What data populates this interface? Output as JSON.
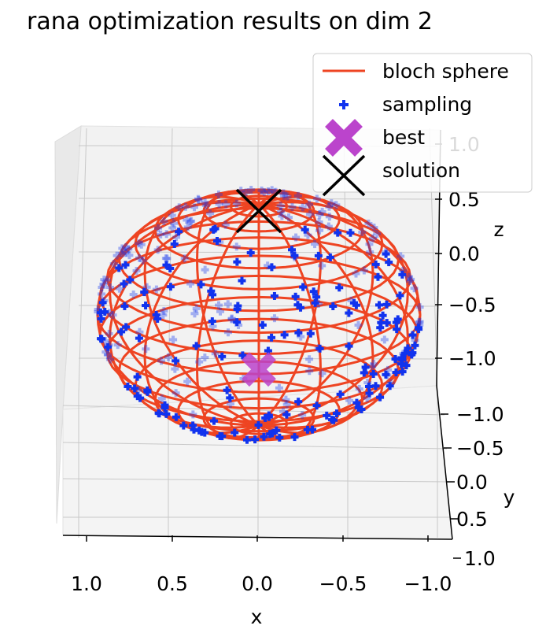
{
  "chart_data": {
    "type": "scatter",
    "projection": "3d",
    "title": "rana optimization results on dim 2",
    "xlabel": "x",
    "ylabel": "y",
    "zlabel": "z",
    "xlim": [
      -1.0,
      1.0
    ],
    "ylim": [
      -1.0,
      1.0
    ],
    "zlim": [
      -1.0,
      1.0
    ],
    "x_ticks": [
      "1.0",
      "0.5",
      "0.0",
      "−0.5",
      "−1.0"
    ],
    "y_ticks": [
      "−1.0",
      "−0.5",
      "0.0",
      "0.5",
      "1.0"
    ],
    "z_ticks": [
      "−1.0",
      "−0.5",
      "0.0",
      "0.5",
      "1.0"
    ],
    "grid": true,
    "legend_position": "top-right",
    "colors": {
      "sphere": "#ee4422",
      "sampling": "#1133ee",
      "best": "#bb44cc",
      "solution": "#000000",
      "pane": "#f2f2f2",
      "grid": "#c8c8c8"
    },
    "legend": [
      {
        "label": "bloch sphere",
        "marker": "line"
      },
      {
        "label": "sampling",
        "marker": "plus"
      },
      {
        "label": "best",
        "marker": "X"
      },
      {
        "label": "solution",
        "marker": "x"
      }
    ],
    "series": [
      {
        "name": "bloch sphere",
        "kind": "wireframe",
        "radius": 1.0,
        "lat_lines": 18,
        "lon_lines": 16
      },
      {
        "name": "sampling",
        "kind": "points",
        "count": 340,
        "distribution": "uniform on unit sphere"
      },
      {
        "name": "best",
        "kind": "point",
        "x": 0.0,
        "y": -0.2,
        "z": -0.6
      },
      {
        "name": "solution",
        "kind": "point",
        "x": 0.0,
        "y": 0.0,
        "z": 0.5
      }
    ]
  }
}
